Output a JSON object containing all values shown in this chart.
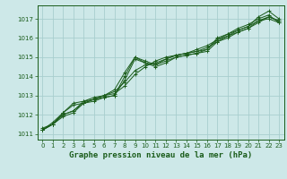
{
  "title": "Graphe pression niveau de la mer (hPa)",
  "background_color": "#cde8e8",
  "grid_color": "#a8cece",
  "line_color": "#1a5c1a",
  "marker_color": "#1a5c1a",
  "xlim": [
    -0.5,
    23.5
  ],
  "ylim": [
    1010.7,
    1017.7
  ],
  "yticks": [
    1011,
    1012,
    1013,
    1014,
    1015,
    1016,
    1017
  ],
  "xticks": [
    0,
    1,
    2,
    3,
    4,
    5,
    6,
    7,
    8,
    9,
    10,
    11,
    12,
    13,
    14,
    15,
    16,
    17,
    18,
    19,
    20,
    21,
    22,
    23
  ],
  "series": [
    [
      1011.2,
      1011.5,
      1011.9,
      1012.1,
      1012.6,
      1012.8,
      1012.9,
      1013.0,
      1013.8,
      1014.9,
      1014.7,
      1014.6,
      1014.8,
      1015.0,
      1015.1,
      1015.2,
      1015.4,
      1015.9,
      1016.2,
      1016.4,
      1016.6,
      1017.1,
      1017.4,
      1017.0
    ],
    [
      1011.2,
      1011.5,
      1012.0,
      1012.2,
      1012.7,
      1012.9,
      1013.0,
      1013.1,
      1013.5,
      1014.1,
      1014.5,
      1014.8,
      1015.0,
      1015.1,
      1015.2,
      1015.4,
      1015.6,
      1015.9,
      1016.1,
      1016.3,
      1016.5,
      1016.8,
      1017.1,
      1016.9
    ],
    [
      1011.2,
      1011.5,
      1012.0,
      1012.2,
      1012.6,
      1012.7,
      1012.9,
      1013.0,
      1014.0,
      1015.0,
      1014.8,
      1014.6,
      1014.9,
      1015.1,
      1015.2,
      1015.3,
      1015.4,
      1016.0,
      1016.2,
      1016.5,
      1016.7,
      1017.0,
      1017.2,
      1016.8
    ],
    [
      1011.2,
      1011.6,
      1012.1,
      1012.6,
      1012.7,
      1012.8,
      1013.0,
      1013.3,
      1014.2,
      1015.0,
      1014.7,
      1014.5,
      1014.7,
      1015.0,
      1015.1,
      1015.2,
      1015.3,
      1015.8,
      1016.1,
      1016.4,
      1016.6,
      1016.9,
      1017.1,
      1016.9
    ],
    [
      1011.3,
      1011.5,
      1012.1,
      1012.5,
      1012.6,
      1012.8,
      1013.0,
      1013.2,
      1013.7,
      1014.3,
      1014.6,
      1014.7,
      1014.9,
      1015.1,
      1015.2,
      1015.3,
      1015.5,
      1015.8,
      1016.0,
      1016.3,
      1016.5,
      1016.9,
      1017.0,
      1016.8
    ]
  ],
  "title_fontsize": 6.5,
  "tick_fontsize": 5,
  "ylabel_fontsize": 5
}
